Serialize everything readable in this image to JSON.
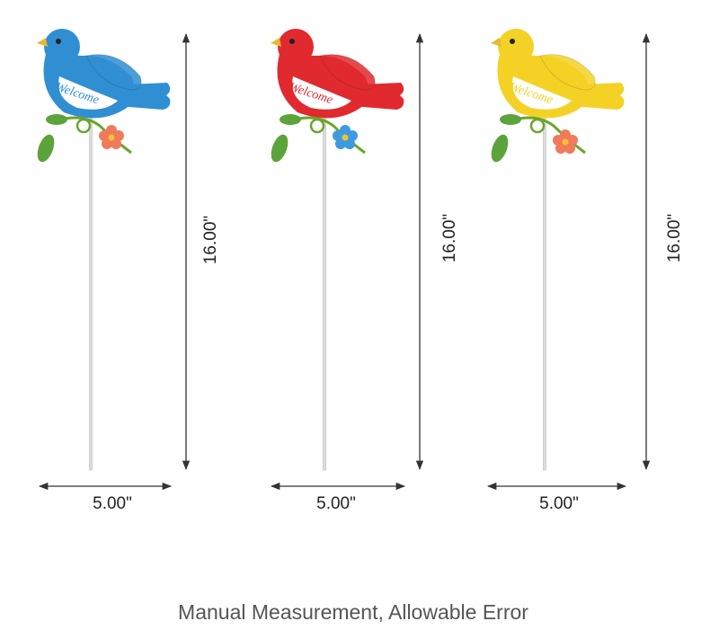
{
  "items": [
    {
      "height": "16.00\"",
      "width": "5.00\""
    },
    {
      "height": "16.00\"",
      "width": "5.00\""
    },
    {
      "height": "16.00\"",
      "width": "5.00\""
    }
  ],
  "caption": "Manual Measurement, Allowable Error"
}
